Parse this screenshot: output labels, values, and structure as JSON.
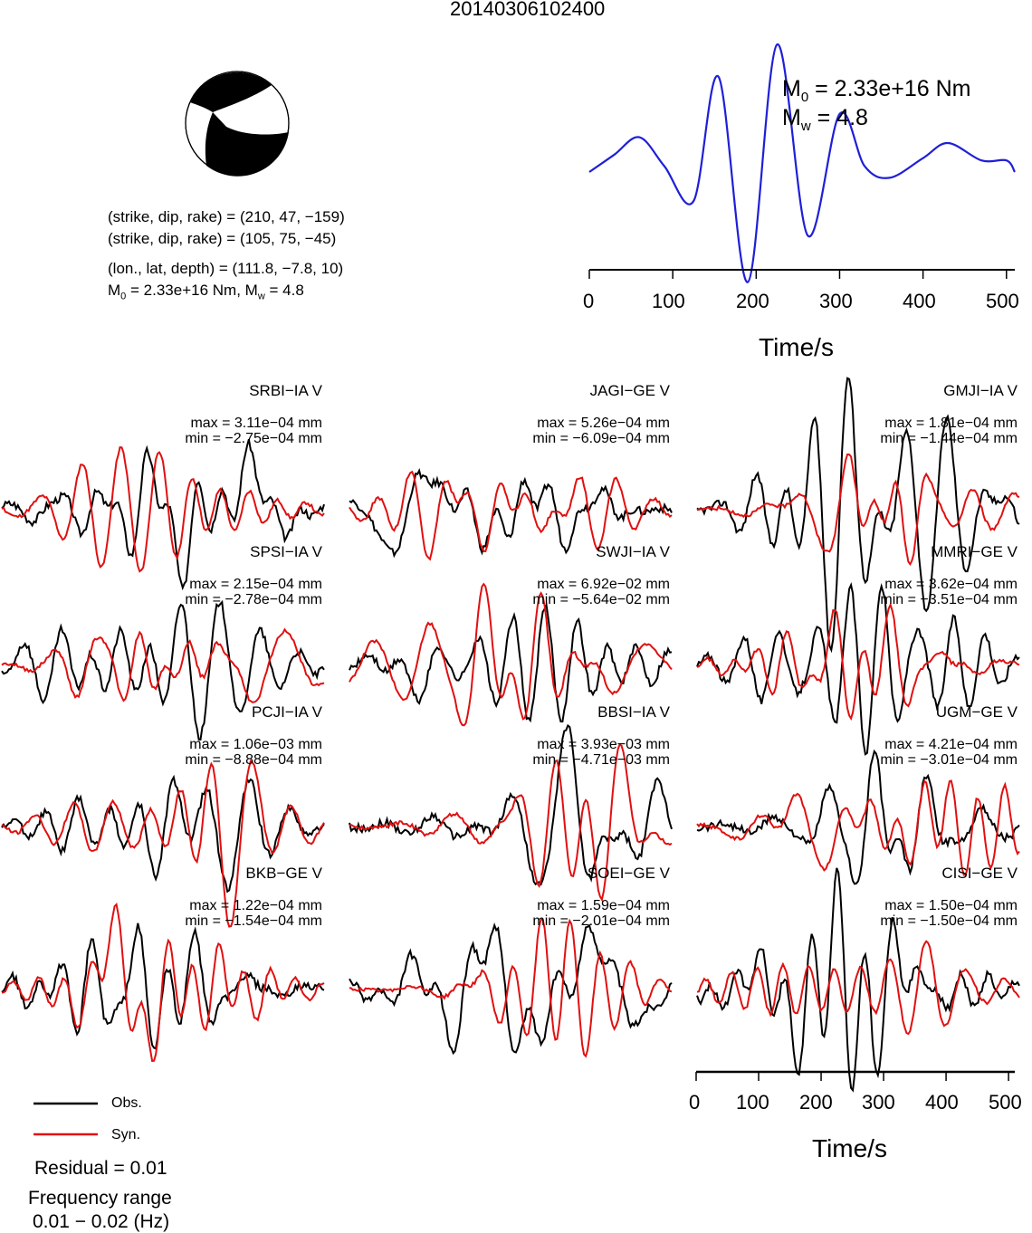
{
  "event_id": "20140306102400",
  "mechanism": {
    "plane1": "(strike, dip, rake) = (210, 47, −159)",
    "plane2": "(strike, dip, rake) = (105, 75, −45)",
    "location": "(lon., lat, depth) = (111.8, −7.8, 10)",
    "moment_line": {
      "m0": "M",
      "m0_sub": "0",
      "m0_val": " = 2.33e+16 Nm, M",
      "mw_sub": "w",
      "mw_val": " = 4.8"
    }
  },
  "stf": {
    "m0_label": {
      "sym": "M",
      "sub": "0",
      "val": " = 2.33e+16 Nm"
    },
    "mw_label": {
      "sym": "M",
      "sub": "w",
      "val": " = 4.8"
    },
    "xlabel": "Time/s",
    "ticks": [
      "0",
      "100",
      "200",
      "300",
      "400",
      "500"
    ],
    "color": "#1f1fd8"
  },
  "stations": [
    {
      "name": "SRBI−IA V",
      "max": "max = 3.11e−04 mm",
      "min": "min = −2.75e−04 mm"
    },
    {
      "name": "JAGI−GE V",
      "max": "max = 5.26e−04 mm",
      "min": "min = −6.09e−04 mm"
    },
    {
      "name": "GMJI−IA V",
      "max": "max = 1.81e−04 mm",
      "min": "min = −1.44e−04 mm"
    },
    {
      "name": "SPSI−IA V",
      "max": "max = 2.15e−04 mm",
      "min": "min = −2.78e−04 mm"
    },
    {
      "name": "SWJI−IA V",
      "max": "max = 6.92e−02 mm",
      "min": "min = −5.64e−02 mm"
    },
    {
      "name": "MMRI−GE V",
      "max": "max = 3.62e−04 mm",
      "min": "min = −3.51e−04 mm"
    },
    {
      "name": "PCJI−IA V",
      "max": "max = 1.06e−03 mm",
      "min": "min = −8.88e−04 mm"
    },
    {
      "name": "BBSI−IA V",
      "max": "max = 3.93e−03 mm",
      "min": "min = −4.71e−03 mm"
    },
    {
      "name": "UGM−GE V",
      "max": "max = 4.21e−04 mm",
      "min": "min = −3.01e−04 mm"
    },
    {
      "name": "BKB−GE V",
      "max": "max = 1.22e−04 mm",
      "min": "min = −1.54e−04 mm"
    },
    {
      "name": "SOEI−GE V",
      "max": "max = 1.59e−04 mm",
      "min": "min = −2.01e−04 mm"
    },
    {
      "name": "CISI−GE V",
      "max": "max = 1.50e−04 mm",
      "min": "min = −1.50e−04 mm"
    }
  ],
  "waveform_axis": {
    "xlabel": "Time/s",
    "ticks": [
      "0",
      "100",
      "200",
      "300",
      "400",
      "500"
    ]
  },
  "legend": {
    "obs": {
      "label": "Obs.",
      "color": "#000000"
    },
    "syn": {
      "label": "Syn.",
      "color": "#e01010"
    }
  },
  "residual": "Residual = 0.01",
  "freq_title": "Frequency range",
  "freq_value": "0.01 − 0.02 (Hz)",
  "chart_data": {
    "type": "line",
    "title": "20140306102400",
    "source_time_function": {
      "xlabel": "Time/s",
      "xlim": [
        0,
        510
      ],
      "x": [
        0,
        30,
        60,
        90,
        125,
        155,
        190,
        225,
        262,
        300,
        330,
        360,
        400,
        430,
        470,
        500,
        510
      ],
      "y": [
        0.0,
        0.15,
        0.3,
        0.05,
        -0.25,
        0.82,
        -0.95,
        1.1,
        -0.55,
        0.5,
        0.05,
        -0.05,
        0.12,
        0.25,
        0.1,
        0.1,
        0.0
      ]
    },
    "waveforms": {
      "xlabel": "Time/s",
      "xlim": [
        0,
        510
      ],
      "series": [
        {
          "name": "Obs.",
          "color": "#000000"
        },
        {
          "name": "Syn.",
          "color": "#e01010"
        }
      ]
    }
  }
}
